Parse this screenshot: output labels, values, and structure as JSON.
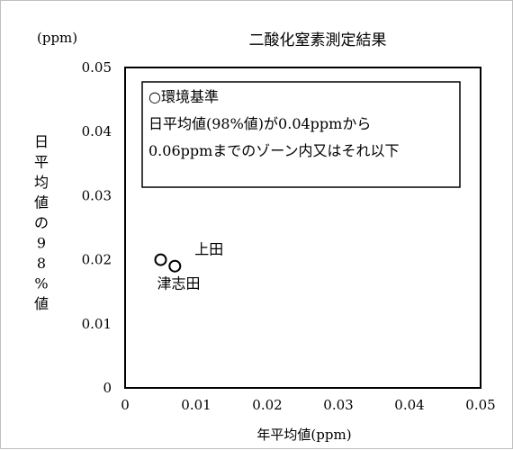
{
  "chart_data": {
    "type": "scatter",
    "title": "二酸化窒素測定結果",
    "unit_label": "(ppm)",
    "xlabel": "年平均値(ppm)",
    "ylabel": "日平均値の98%値",
    "xlim": [
      0,
      0.05
    ],
    "ylim": [
      0,
      0.05
    ],
    "x_ticks": [
      "0",
      "0.01",
      "0.02",
      "0.03",
      "0.04",
      "0.05"
    ],
    "y_ticks": [
      "0",
      "0.01",
      "0.02",
      "0.03",
      "0.04",
      "0.05"
    ],
    "grid": false,
    "points": [
      {
        "label": "上田",
        "x": 0.007,
        "y": 0.019
      },
      {
        "label": "津志田",
        "x": 0.005,
        "y": 0.02
      }
    ],
    "annotation": {
      "title": "○環境基準",
      "lines": [
        "日平均値(98%値)が0.04ppmから",
        "0.06ppmまでのゾーン内又はそれ以下"
      ]
    }
  }
}
